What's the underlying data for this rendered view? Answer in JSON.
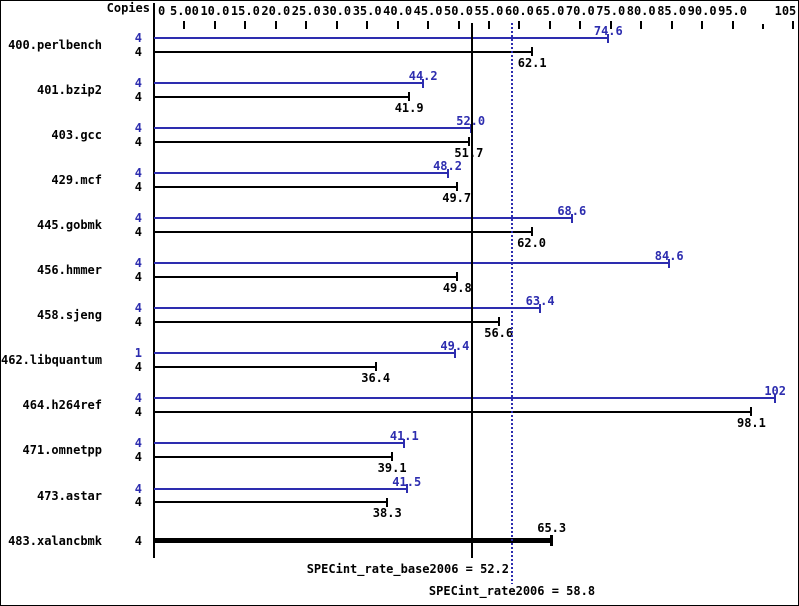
{
  "chart_data": {
    "type": "bar",
    "orientation": "horizontal",
    "copies_header": "Copies",
    "xlim": [
      0,
      105
    ],
    "x_ticks": [
      {
        "v": 0,
        "label": "0"
      },
      {
        "v": 5,
        "label": "5.00"
      },
      {
        "v": 10,
        "label": "10.0"
      },
      {
        "v": 15,
        "label": "15.0"
      },
      {
        "v": 20,
        "label": "20.0"
      },
      {
        "v": 25,
        "label": "25.0"
      },
      {
        "v": 30,
        "label": "30.0"
      },
      {
        "v": 35,
        "label": "35.0"
      },
      {
        "v": 40,
        "label": "40.0"
      },
      {
        "v": 45,
        "label": "45.0"
      },
      {
        "v": 50,
        "label": "50.0"
      },
      {
        "v": 55,
        "label": "55.0"
      },
      {
        "v": 60,
        "label": "60.0"
      },
      {
        "v": 65,
        "label": "65.0"
      },
      {
        "v": 70,
        "label": "70.0"
      },
      {
        "v": 75,
        "label": "75.0"
      },
      {
        "v": 80,
        "label": "80.0"
      },
      {
        "v": 85,
        "label": "85.0"
      },
      {
        "v": 90,
        "label": "90.0"
      },
      {
        "v": 95,
        "label": "95.0"
      },
      {
        "v": 100,
        "label": ""
      },
      {
        "v": 105,
        "label": "105"
      }
    ],
    "series": [
      {
        "name": "peak (SPECint_rate2006)",
        "color": "#2d2daf"
      },
      {
        "name": "base (SPECint_rate_base2006)",
        "color": "#000000"
      }
    ],
    "benchmarks": [
      {
        "name": "400.perlbench",
        "peak": {
          "copies": "4",
          "value": 74.6,
          "label": "74.6"
        },
        "base": {
          "copies": "4",
          "value": 62.1,
          "label": "62.1"
        }
      },
      {
        "name": "401.bzip2",
        "peak": {
          "copies": "4",
          "value": 44.2,
          "label": "44.2"
        },
        "base": {
          "copies": "4",
          "value": 41.9,
          "label": "41.9"
        }
      },
      {
        "name": "403.gcc",
        "peak": {
          "copies": "4",
          "value": 52.0,
          "label": "52.0"
        },
        "base": {
          "copies": "4",
          "value": 51.7,
          "label": "51.7"
        }
      },
      {
        "name": "429.mcf",
        "peak": {
          "copies": "4",
          "value": 48.2,
          "label": "48.2"
        },
        "base": {
          "copies": "4",
          "value": 49.7,
          "label": "49.7"
        }
      },
      {
        "name": "445.gobmk",
        "peak": {
          "copies": "4",
          "value": 68.6,
          "label": "68.6"
        },
        "base": {
          "copies": "4",
          "value": 62.0,
          "label": "62.0"
        }
      },
      {
        "name": "456.hmmer",
        "peak": {
          "copies": "4",
          "value": 84.6,
          "label": "84.6"
        },
        "base": {
          "copies": "4",
          "value": 49.8,
          "label": "49.8"
        }
      },
      {
        "name": "458.sjeng",
        "peak": {
          "copies": "4",
          "value": 63.4,
          "label": "63.4"
        },
        "base": {
          "copies": "4",
          "value": 56.6,
          "label": "56.6"
        }
      },
      {
        "name": "462.libquantum",
        "peak": {
          "copies": "1",
          "value": 49.4,
          "label": "49.4"
        },
        "base": {
          "copies": "4",
          "value": 36.4,
          "label": "36.4"
        }
      },
      {
        "name": "464.h264ref",
        "peak": {
          "copies": "4",
          "value": 102,
          "label": "102"
        },
        "base": {
          "copies": "4",
          "value": 98.1,
          "label": "98.1"
        }
      },
      {
        "name": "471.omnetpp",
        "peak": {
          "copies": "4",
          "value": 41.1,
          "label": "41.1"
        },
        "base": {
          "copies": "4",
          "value": 39.1,
          "label": "39.1"
        }
      },
      {
        "name": "473.astar",
        "peak": {
          "copies": "4",
          "value": 41.5,
          "label": "41.5"
        },
        "base": {
          "copies": "4",
          "value": 38.3,
          "label": "38.3"
        }
      },
      {
        "name": "483.xalancbmk",
        "merged": true,
        "base": {
          "copies": "4",
          "value": 65.3,
          "label": "65.3"
        }
      }
    ],
    "summary": {
      "base": {
        "label": "SPECint_rate_base2006 = 52.2",
        "value": 52.2
      },
      "peak": {
        "label": "SPECint_rate2006 = 58.8",
        "value": 58.8
      }
    },
    "colors": {
      "peak": "#2d2daf",
      "base": "#000000",
      "background": "#ffffff",
      "border": "#000000"
    }
  }
}
